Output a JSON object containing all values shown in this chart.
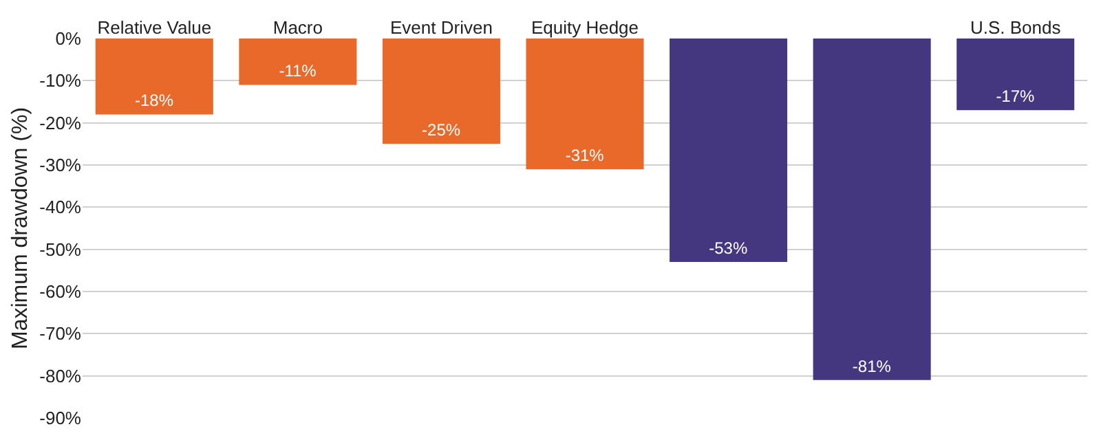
{
  "chart_data": {
    "type": "bar",
    "ylabel": "Maximum drawdown (%)",
    "categories": [
      "Relative Value",
      "Macro",
      "Event Driven",
      "Equity Hedge",
      null,
      null,
      "U.S. Bonds"
    ],
    "values": [
      -18,
      -11,
      -25,
      -31,
      -53,
      -81,
      -17
    ],
    "colors": [
      "#e8692a",
      "#e8692a",
      "#e8692a",
      "#e8692a",
      "#45377f",
      "#45377f",
      "#45377f"
    ],
    "value_labels": [
      "-18%",
      "-11%",
      "-25%",
      "-31%",
      "-53%",
      "-81%",
      "-17%"
    ],
    "ylim": [
      -90,
      0
    ],
    "yticks": [
      {
        "value": 0,
        "label": "0%"
      },
      {
        "value": -10,
        "label": "-10%"
      },
      {
        "value": -20,
        "label": "-20%"
      },
      {
        "value": -30,
        "label": "-30%"
      },
      {
        "value": -40,
        "label": "-40%"
      },
      {
        "value": -50,
        "label": "-50%"
      },
      {
        "value": -60,
        "label": "-60%"
      },
      {
        "value": -70,
        "label": "-70%"
      },
      {
        "value": -80,
        "label": "-80%"
      },
      {
        "value": -90,
        "label": "-90%"
      }
    ],
    "grid": "y"
  }
}
